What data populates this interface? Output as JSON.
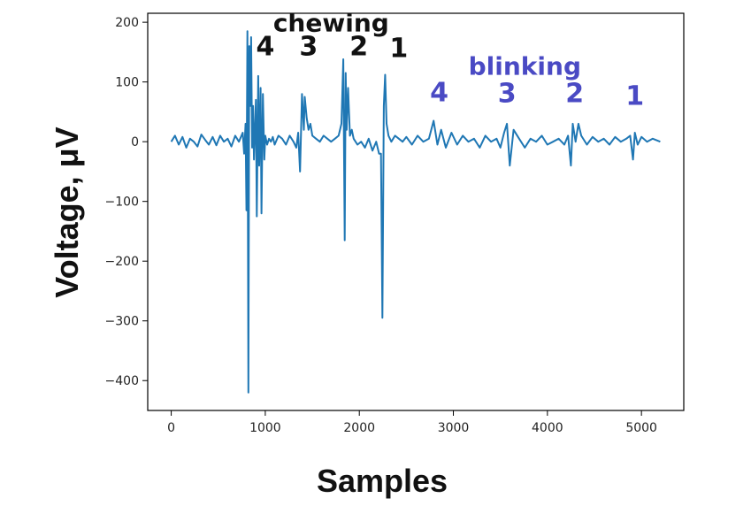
{
  "chart_data": {
    "type": "line",
    "title": "",
    "xlabel": "Samples",
    "ylabel": "Voltage, μV",
    "xlim": [
      -250,
      5450
    ],
    "ylim": [
      -450,
      215
    ],
    "xticks": [
      0,
      1000,
      2000,
      3000,
      4000,
      5000
    ],
    "yticks": [
      200,
      100,
      0,
      -100,
      -200,
      -300,
      -400
    ],
    "xtick_labels": [
      "0",
      "1000",
      "2000",
      "3000",
      "4000",
      "5000"
    ],
    "ytick_labels": [
      "200",
      "100",
      "0",
      "−100",
      "−200",
      "−300",
      "−400"
    ],
    "grid": false,
    "legend": "none",
    "line_color": "#1f77b4",
    "series": [
      {
        "x": [
          0,
          40,
          80,
          120,
          160,
          200,
          240,
          280,
          320,
          360,
          400,
          440,
          480,
          520,
          560,
          600,
          640,
          680,
          720,
          760,
          775,
          790,
          800,
          810,
          820,
          830,
          840,
          850,
          860,
          870,
          880,
          900,
          910,
          925,
          935,
          950,
          960,
          975,
          990,
          1000,
          1020,
          1040,
          1060,
          1080,
          1100,
          1140,
          1180,
          1220,
          1260,
          1300,
          1330,
          1350,
          1370,
          1390,
          1410,
          1420,
          1440,
          1460,
          1480,
          1500,
          1540,
          1580,
          1620,
          1660,
          1700,
          1740,
          1780,
          1810,
          1830,
          1845,
          1855,
          1865,
          1880,
          1900,
          1920,
          1940,
          1980,
          2020,
          2060,
          2100,
          2140,
          2180,
          2210,
          2230,
          2245,
          2260,
          2275,
          2290,
          2310,
          2340,
          2380,
          2420,
          2460,
          2500,
          2560,
          2620,
          2680,
          2740,
          2790,
          2830,
          2870,
          2920,
          2980,
          3040,
          3100,
          3160,
          3220,
          3280,
          3340,
          3400,
          3460,
          3500,
          3540,
          3570,
          3600,
          3640,
          3700,
          3760,
          3820,
          3880,
          3940,
          4000,
          4060,
          4120,
          4180,
          4220,
          4250,
          4270,
          4300,
          4330,
          4360,
          4420,
          4480,
          4540,
          4600,
          4660,
          4720,
          4780,
          4840,
          4880,
          4910,
          4930,
          4960,
          5000,
          5060,
          5120,
          5200
        ],
        "y": [
          0,
          10,
          -5,
          8,
          -10,
          5,
          0,
          -8,
          12,
          3,
          -5,
          8,
          -6,
          10,
          0,
          5,
          -8,
          10,
          0,
          15,
          -20,
          30,
          -115,
          185,
          -420,
          160,
          60,
          175,
          -10,
          60,
          -30,
          70,
          -125,
          110,
          -40,
          90,
          -120,
          80,
          -30,
          10,
          -5,
          5,
          0,
          8,
          -5,
          10,
          5,
          -5,
          10,
          0,
          -10,
          15,
          -50,
          80,
          20,
          75,
          40,
          20,
          30,
          10,
          5,
          0,
          10,
          5,
          0,
          5,
          10,
          30,
          138,
          -165,
          115,
          20,
          90,
          10,
          20,
          5,
          -5,
          0,
          -10,
          5,
          -15,
          0,
          -20,
          -20,
          -295,
          60,
          112,
          30,
          10,
          0,
          10,
          5,
          0,
          8,
          -5,
          10,
          0,
          5,
          35,
          -5,
          20,
          -10,
          15,
          -5,
          10,
          0,
          5,
          -10,
          10,
          0,
          5,
          -10,
          15,
          30,
          -40,
          20,
          5,
          -10,
          5,
          0,
          10,
          -5,
          0,
          5,
          -5,
          10,
          -40,
          30,
          0,
          30,
          10,
          -5,
          8,
          0,
          5,
          -5,
          8,
          0,
          5,
          10,
          -30,
          15,
          -5,
          8,
          0,
          5,
          0
        ]
      }
    ],
    "annotations": [
      {
        "text": "chewing",
        "x": 1700,
        "y": 185,
        "color": "#111111",
        "size": 28
      },
      {
        "text": "4",
        "x": 1000,
        "y": 145,
        "color": "#111111",
        "size": 30
      },
      {
        "text": "3",
        "x": 1460,
        "y": 145,
        "color": "#111111",
        "size": 30
      },
      {
        "text": "2",
        "x": 1995,
        "y": 145,
        "color": "#111111",
        "size": 30
      },
      {
        "text": "1",
        "x": 2420,
        "y": 142,
        "color": "#111111",
        "size": 30
      },
      {
        "text": "blinking",
        "x": 3760,
        "y": 112,
        "color": "#4a4ac4",
        "size": 28
      },
      {
        "text": "4",
        "x": 2850,
        "y": 68,
        "color": "#4a4ac4",
        "size": 30
      },
      {
        "text": "3",
        "x": 3570,
        "y": 66,
        "color": "#4a4ac4",
        "size": 30
      },
      {
        "text": "2",
        "x": 4290,
        "y": 66,
        "color": "#4a4ac4",
        "size": 30
      },
      {
        "text": "1",
        "x": 4930,
        "y": 62,
        "color": "#4a4ac4",
        "size": 30
      }
    ]
  }
}
